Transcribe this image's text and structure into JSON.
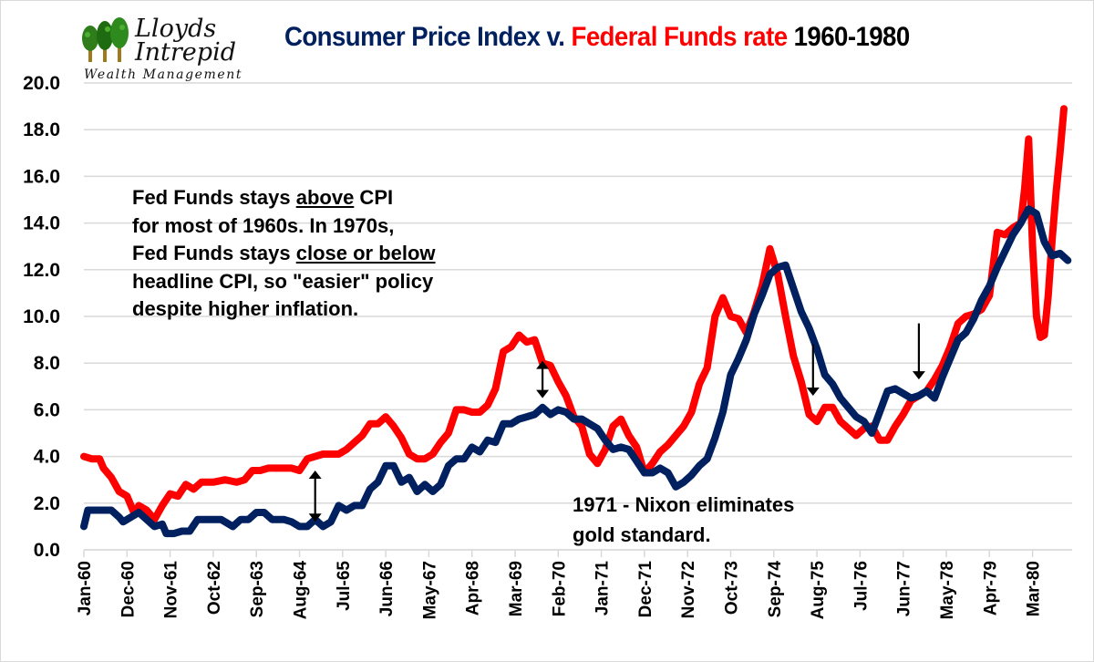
{
  "logo": {
    "line1": "Lloyds",
    "line2": "Intrepid",
    "line3": "Wealth Management",
    "icon": "trees-icon"
  },
  "title": {
    "part1": "Consumer Price Index",
    "part2": " v. ",
    "part3": "Federal Funds rate",
    "part4": " 1960-1980"
  },
  "annotations": {
    "note1": {
      "l1a": "Fed Funds stays ",
      "l1u": "above",
      "l1b": " CPI",
      "l2": "for most of 1960s. In 1970s,",
      "l3a": "Fed Funds stays ",
      "l3u": "close or below",
      "l4": "headline CPI, so \"easier\" policy",
      "l5": "despite higher inflation."
    },
    "note2": {
      "l1": "1971 - Nixon eliminates",
      "l2": "gold standard."
    }
  },
  "chart_data": {
    "type": "line",
    "title": "Consumer Price Index v. Federal Funds rate 1960-1980",
    "xlabel": "",
    "ylabel": "",
    "ylim": [
      0,
      20
    ],
    "yticks": [
      "0.0",
      "2.0",
      "4.0",
      "6.0",
      "8.0",
      "10.0",
      "12.0",
      "14.0",
      "16.0",
      "18.0",
      "20.0"
    ],
    "grid": true,
    "legend": "none (series identified by colored title words)",
    "x_unit": "months since Jan-60",
    "x_range": [
      0,
      251
    ],
    "xticks": [
      {
        "m": 0,
        "label": "Jan-60"
      },
      {
        "m": 11,
        "label": "Dec-60"
      },
      {
        "m": 22,
        "label": "Nov-61"
      },
      {
        "m": 33,
        "label": "Oct-62"
      },
      {
        "m": 44,
        "label": "Sep-63"
      },
      {
        "m": 55,
        "label": "Aug-64"
      },
      {
        "m": 66,
        "label": "Jul-65"
      },
      {
        "m": 77,
        "label": "Jun-66"
      },
      {
        "m": 88,
        "label": "May-67"
      },
      {
        "m": 99,
        "label": "Apr-68"
      },
      {
        "m": 110,
        "label": "Mar-69"
      },
      {
        "m": 121,
        "label": "Feb-70"
      },
      {
        "m": 132,
        "label": "Jan-71"
      },
      {
        "m": 143,
        "label": "Dec-71"
      },
      {
        "m": 154,
        "label": "Nov-72"
      },
      {
        "m": 165,
        "label": "Oct-73"
      },
      {
        "m": 176,
        "label": "Sep-74"
      },
      {
        "m": 187,
        "label": "Aug-75"
      },
      {
        "m": 198,
        "label": "Jul-76"
      },
      {
        "m": 209,
        "label": "Jun-77"
      },
      {
        "m": 220,
        "label": "May-78"
      },
      {
        "m": 231,
        "label": "Apr-79"
      },
      {
        "m": 242,
        "label": "Mar-80"
      }
    ],
    "series": [
      {
        "name": "Consumer Price Index",
        "color": "#002060",
        "points": [
          [
            0,
            1.0
          ],
          [
            1,
            1.7
          ],
          [
            4,
            1.7
          ],
          [
            7,
            1.7
          ],
          [
            9,
            1.4
          ],
          [
            10,
            1.2
          ],
          [
            12,
            1.4
          ],
          [
            14,
            1.6
          ],
          [
            16,
            1.3
          ],
          [
            18,
            1.0
          ],
          [
            20,
            1.1
          ],
          [
            21,
            0.7
          ],
          [
            23,
            0.7
          ],
          [
            25,
            0.8
          ],
          [
            27,
            0.8
          ],
          [
            29,
            1.3
          ],
          [
            32,
            1.3
          ],
          [
            35,
            1.3
          ],
          [
            38,
            1.0
          ],
          [
            40,
            1.3
          ],
          [
            42,
            1.3
          ],
          [
            44,
            1.6
          ],
          [
            46,
            1.6
          ],
          [
            48,
            1.3
          ],
          [
            51,
            1.3
          ],
          [
            53,
            1.2
          ],
          [
            55,
            1.0
          ],
          [
            57,
            1.0
          ],
          [
            59,
            1.3
          ],
          [
            61,
            1.0
          ],
          [
            63,
            1.2
          ],
          [
            65,
            1.9
          ],
          [
            67,
            1.7
          ],
          [
            69,
            1.9
          ],
          [
            71,
            1.9
          ],
          [
            73,
            2.6
          ],
          [
            75,
            2.9
          ],
          [
            77,
            3.6
          ],
          [
            79,
            3.6
          ],
          [
            81,
            2.9
          ],
          [
            83,
            3.1
          ],
          [
            85,
            2.5
          ],
          [
            87,
            2.8
          ],
          [
            89,
            2.5
          ],
          [
            91,
            2.8
          ],
          [
            93,
            3.6
          ],
          [
            95,
            3.9
          ],
          [
            97,
            3.9
          ],
          [
            99,
            4.4
          ],
          [
            101,
            4.2
          ],
          [
            103,
            4.7
          ],
          [
            105,
            4.6
          ],
          [
            107,
            5.4
          ],
          [
            109,
            5.4
          ],
          [
            111,
            5.6
          ],
          [
            113,
            5.7
          ],
          [
            115,
            5.8
          ],
          [
            117,
            6.1
          ],
          [
            119,
            5.8
          ],
          [
            121,
            6.0
          ],
          [
            123,
            5.9
          ],
          [
            125,
            5.6
          ],
          [
            127,
            5.6
          ],
          [
            129,
            5.4
          ],
          [
            131,
            5.2
          ],
          [
            133,
            4.7
          ],
          [
            135,
            4.3
          ],
          [
            137,
            4.4
          ],
          [
            139,
            4.3
          ],
          [
            141,
            3.8
          ],
          [
            143,
            3.3
          ],
          [
            145,
            3.3
          ],
          [
            147,
            3.5
          ],
          [
            149,
            3.3
          ],
          [
            151,
            2.7
          ],
          [
            153,
            2.9
          ],
          [
            155,
            3.2
          ],
          [
            157,
            3.6
          ],
          [
            159,
            3.9
          ],
          [
            161,
            4.8
          ],
          [
            163,
            5.9
          ],
          [
            165,
            7.5
          ],
          [
            167,
            8.2
          ],
          [
            169,
            9.0
          ],
          [
            171,
            10.1
          ],
          [
            173,
            10.9
          ],
          [
            175,
            11.8
          ],
          [
            177,
            12.1
          ],
          [
            179,
            12.2
          ],
          [
            181,
            11.2
          ],
          [
            183,
            10.2
          ],
          [
            185,
            9.5
          ],
          [
            187,
            8.6
          ],
          [
            189,
            7.5
          ],
          [
            191,
            7.1
          ],
          [
            193,
            6.5
          ],
          [
            195,
            6.1
          ],
          [
            197,
            5.7
          ],
          [
            199,
            5.5
          ],
          [
            201,
            5.0
          ],
          [
            203,
            5.9
          ],
          [
            205,
            6.8
          ],
          [
            207,
            6.9
          ],
          [
            209,
            6.7
          ],
          [
            211,
            6.5
          ],
          [
            213,
            6.6
          ],
          [
            215,
            6.8
          ],
          [
            217,
            6.5
          ],
          [
            219,
            7.4
          ],
          [
            221,
            8.2
          ],
          [
            223,
            9.0
          ],
          [
            225,
            9.3
          ],
          [
            227,
            9.9
          ],
          [
            229,
            10.7
          ],
          [
            231,
            11.3
          ],
          [
            233,
            12.1
          ],
          [
            235,
            12.8
          ],
          [
            237,
            13.5
          ],
          [
            239,
            14.0
          ],
          [
            241,
            14.6
          ],
          [
            243,
            14.4
          ],
          [
            245,
            13.2
          ],
          [
            247,
            12.6
          ],
          [
            249,
            12.7
          ],
          [
            251,
            12.4
          ]
        ]
      },
      {
        "name": "Federal Funds rate",
        "color": "#ff0000",
        "points": [
          [
            0,
            4.0
          ],
          [
            2,
            3.9
          ],
          [
            4,
            3.9
          ],
          [
            5,
            3.5
          ],
          [
            7,
            3.1
          ],
          [
            9,
            2.5
          ],
          [
            11,
            2.3
          ],
          [
            13,
            1.5
          ],
          [
            14,
            1.9
          ],
          [
            16,
            1.7
          ],
          [
            18,
            1.3
          ],
          [
            20,
            1.9
          ],
          [
            22,
            2.4
          ],
          [
            24,
            2.3
          ],
          [
            26,
            2.8
          ],
          [
            28,
            2.6
          ],
          [
            30,
            2.9
          ],
          [
            33,
            2.9
          ],
          [
            36,
            3.0
          ],
          [
            39,
            2.9
          ],
          [
            41,
            3.0
          ],
          [
            43,
            3.4
          ],
          [
            45,
            3.4
          ],
          [
            47,
            3.5
          ],
          [
            50,
            3.5
          ],
          [
            53,
            3.5
          ],
          [
            55,
            3.4
          ],
          [
            57,
            3.9
          ],
          [
            59,
            4.0
          ],
          [
            61,
            4.1
          ],
          [
            63,
            4.1
          ],
          [
            65,
            4.1
          ],
          [
            67,
            4.3
          ],
          [
            69,
            4.6
          ],
          [
            71,
            4.9
          ],
          [
            73,
            5.4
          ],
          [
            75,
            5.4
          ],
          [
            77,
            5.7
          ],
          [
            79,
            5.3
          ],
          [
            81,
            4.8
          ],
          [
            83,
            4.1
          ],
          [
            85,
            3.9
          ],
          [
            87,
            3.9
          ],
          [
            89,
            4.1
          ],
          [
            91,
            4.6
          ],
          [
            93,
            5.0
          ],
          [
            95,
            6.0
          ],
          [
            97,
            6.0
          ],
          [
            99,
            5.9
          ],
          [
            101,
            5.9
          ],
          [
            103,
            6.2
          ],
          [
            105,
            6.9
          ],
          [
            107,
            8.5
          ],
          [
            109,
            8.7
          ],
          [
            111,
            9.2
          ],
          [
            113,
            8.9
          ],
          [
            115,
            9.0
          ],
          [
            117,
            8.0
          ],
          [
            119,
            7.9
          ],
          [
            121,
            7.2
          ],
          [
            123,
            6.6
          ],
          [
            125,
            5.7
          ],
          [
            127,
            5.3
          ],
          [
            129,
            4.1
          ],
          [
            131,
            3.7
          ],
          [
            133,
            4.3
          ],
          [
            135,
            5.3
          ],
          [
            137,
            5.6
          ],
          [
            139,
            4.9
          ],
          [
            141,
            4.4
          ],
          [
            143,
            3.3
          ],
          [
            145,
            3.7
          ],
          [
            147,
            4.2
          ],
          [
            149,
            4.5
          ],
          [
            151,
            4.9
          ],
          [
            153,
            5.3
          ],
          [
            155,
            5.9
          ],
          [
            157,
            7.1
          ],
          [
            159,
            7.8
          ],
          [
            161,
            10.0
          ],
          [
            163,
            10.8
          ],
          [
            165,
            10.0
          ],
          [
            167,
            9.9
          ],
          [
            169,
            9.3
          ],
          [
            171,
            10.2
          ],
          [
            173,
            11.3
          ],
          [
            175,
            12.9
          ],
          [
            177,
            11.8
          ],
          [
            179,
            10.0
          ],
          [
            181,
            8.3
          ],
          [
            183,
            7.2
          ],
          [
            185,
            5.8
          ],
          [
            187,
            5.5
          ],
          [
            189,
            6.1
          ],
          [
            191,
            6.1
          ],
          [
            193,
            5.5
          ],
          [
            195,
            5.2
          ],
          [
            197,
            4.9
          ],
          [
            199,
            5.2
          ],
          [
            201,
            5.3
          ],
          [
            203,
            4.7
          ],
          [
            205,
            4.7
          ],
          [
            207,
            5.3
          ],
          [
            209,
            5.8
          ],
          [
            211,
            6.4
          ],
          [
            213,
            6.6
          ],
          [
            215,
            6.8
          ],
          [
            217,
            7.3
          ],
          [
            219,
            7.9
          ],
          [
            221,
            8.7
          ],
          [
            223,
            9.7
          ],
          [
            225,
            10.0
          ],
          [
            227,
            10.1
          ],
          [
            229,
            10.3
          ],
          [
            231,
            10.9
          ],
          [
            233,
            13.6
          ],
          [
            235,
            13.5
          ],
          [
            237,
            13.8
          ],
          [
            239,
            14.0
          ],
          [
            240,
            15.5
          ],
          [
            241,
            17.6
          ],
          [
            242,
            13.0
          ],
          [
            243,
            10.0
          ],
          [
            244,
            9.1
          ],
          [
            245,
            9.2
          ],
          [
            246,
            10.9
          ],
          [
            247,
            13.3
          ],
          [
            248,
            15.3
          ],
          [
            249,
            17.0
          ],
          [
            250,
            18.9
          ]
        ]
      }
    ],
    "arrows": [
      {
        "m": 59,
        "y_from": 1.2,
        "y_to": 3.4,
        "type": "double"
      },
      {
        "m": 117,
        "y_from": 6.5,
        "y_to": 8.1,
        "type": "double"
      },
      {
        "m": 186,
        "y_from": 8.8,
        "y_to": 6.6,
        "type": "down"
      },
      {
        "m": 213,
        "y_from": 9.7,
        "y_to": 7.3,
        "type": "down"
      }
    ]
  }
}
